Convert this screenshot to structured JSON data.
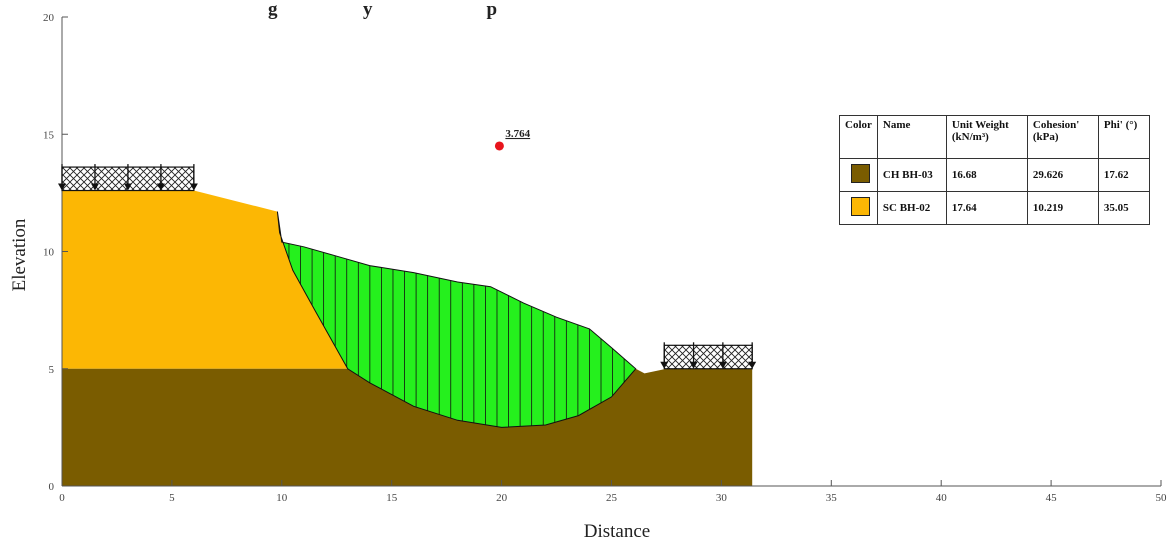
{
  "header": {
    "visible_title_fragment": "g                  y                        p"
  },
  "chart_data": {
    "type": "slope-stability-section",
    "xlabel": "Distance",
    "ylabel": "Elevation",
    "xlim": [
      0,
      50
    ],
    "ylim": [
      0,
      20
    ],
    "x_ticks": [
      "0",
      "5",
      "10",
      "15",
      "20",
      "25",
      "30",
      "35",
      "40",
      "45",
      "50"
    ],
    "y_ticks": [
      "0",
      "5",
      "10",
      "15",
      "20"
    ],
    "layers": [
      {
        "name": "SC BH-02",
        "color": "#fcb704",
        "points": [
          [
            0,
            5
          ],
          [
            0,
            12.6
          ],
          [
            6,
            12.6
          ],
          [
            9.8,
            11.7
          ],
          [
            9.9,
            10.8
          ],
          [
            10.5,
            9.2
          ],
          [
            11.5,
            7.5
          ],
          [
            12.5,
            5.9
          ],
          [
            13,
            5
          ],
          [
            0,
            5
          ]
        ]
      },
      {
        "name": "CH BH-03",
        "color": "#7a5c00",
        "points": [
          [
            0,
            0
          ],
          [
            0,
            5
          ],
          [
            13,
            5
          ],
          [
            14,
            4.4
          ],
          [
            16,
            3.4
          ],
          [
            18,
            2.8
          ],
          [
            20,
            2.5
          ],
          [
            22,
            2.6
          ],
          [
            23.5,
            3.0
          ],
          [
            25,
            3.8
          ],
          [
            26.1,
            5.0
          ],
          [
            26.5,
            4.8
          ],
          [
            27.5,
            5
          ],
          [
            31.4,
            5
          ],
          [
            31.4,
            0
          ]
        ]
      }
    ],
    "slip_surface": {
      "color": "#25f01d",
      "points": [
        [
          9.8,
          11.7
        ],
        [
          10,
          10.4
        ],
        [
          11,
          10.2
        ],
        [
          12.5,
          9.8
        ],
        [
          14,
          9.4
        ],
        [
          16,
          9.1
        ],
        [
          18,
          8.7
        ],
        [
          19.5,
          8.5
        ],
        [
          21,
          7.8
        ],
        [
          22.5,
          7.2
        ],
        [
          24,
          6.7
        ],
        [
          25,
          5.9
        ],
        [
          26.1,
          5.0
        ],
        [
          25,
          3.8
        ],
        [
          23.5,
          3.0
        ],
        [
          22,
          2.6
        ],
        [
          20,
          2.5
        ],
        [
          18,
          2.8
        ],
        [
          16,
          3.4
        ],
        [
          14,
          4.4
        ],
        [
          13,
          5
        ],
        [
          11.5,
          7.5
        ],
        [
          10.5,
          9.2
        ],
        [
          9.9,
          10.8
        ]
      ],
      "slice_count": 31
    },
    "center_point": {
      "x": 19.9,
      "y": 14.5,
      "color": "#e8141c"
    },
    "factor_of_safety": "3.764",
    "loads": [
      {
        "x_start": 0,
        "x_end": 6,
        "elevation": 12.6,
        "height": 1.0,
        "arrows": 5
      },
      {
        "x_start": 27.4,
        "x_end": 31.4,
        "elevation": 5.0,
        "height": 1.0,
        "arrows": 4
      }
    ]
  },
  "legend_table": {
    "headers": [
      "Color",
      "Name",
      "Unit Weight (kN/m³)",
      "Cohesion' (kPa)",
      "Phi' (°)"
    ],
    "rows": [
      {
        "color": "#7a5c00",
        "name": "CH BH-03",
        "unit_weight": "16.68",
        "cohesion": "29.626",
        "phi": "17.62"
      },
      {
        "color": "#fcb704",
        "name": "SC BH-02",
        "unit_weight": "17.64",
        "cohesion": "10.219",
        "phi": "35.05"
      }
    ]
  }
}
